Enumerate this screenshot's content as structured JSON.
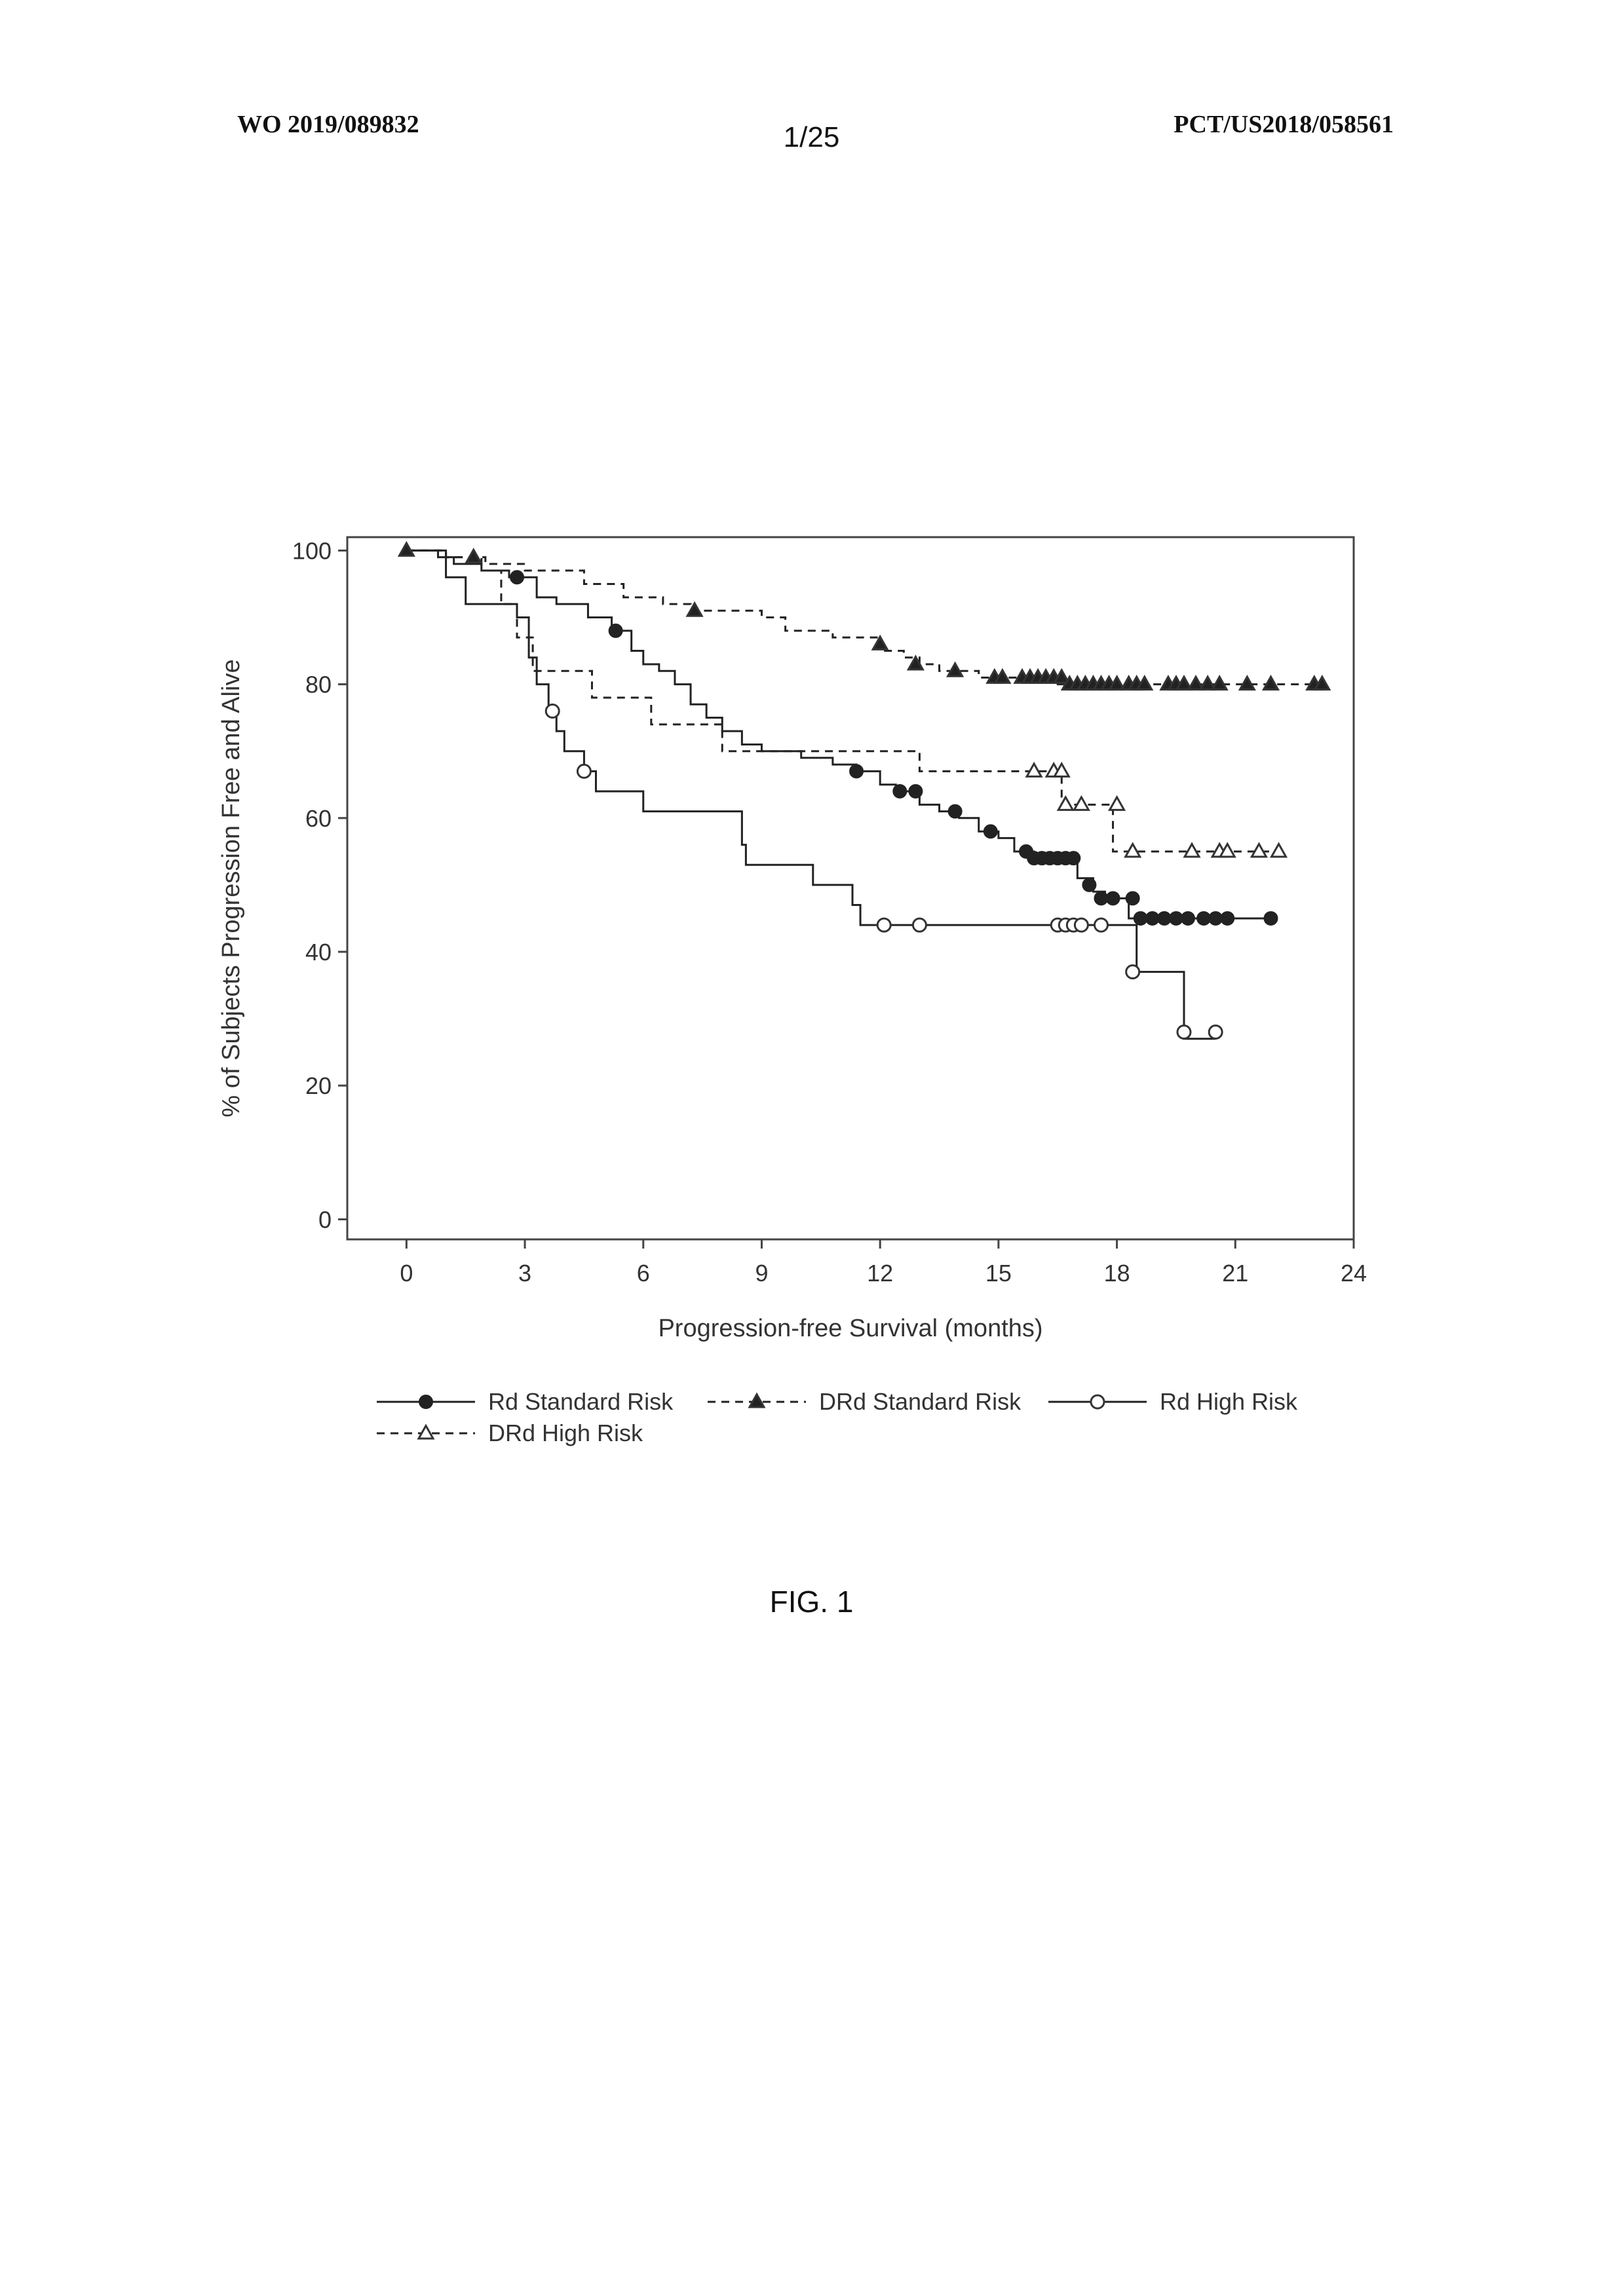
{
  "header": {
    "left": "WO 2019/089832",
    "center": "1/25",
    "right": "PCT/US2018/058561"
  },
  "figure_caption": "FIG. 1",
  "chart_data": {
    "type": "line",
    "step": true,
    "title": "",
    "xlabel": "Progression-free Survival (months)",
    "ylabel": "% of Subjects Progression Free and Alive",
    "xlim": [
      -1.5,
      24
    ],
    "ylim": [
      -3,
      102
    ],
    "xticks": [
      0,
      3,
      6,
      9,
      12,
      15,
      18,
      21,
      24
    ],
    "yticks": [
      0,
      20,
      40,
      60,
      80,
      100
    ],
    "grid": false,
    "legend_position": "bottom",
    "series": [
      {
        "name": "Rd Standard Risk",
        "line": "solid",
        "marker": "filled-circle",
        "color": "#222222",
        "points": [
          [
            0,
            100
          ],
          [
            0.8,
            99
          ],
          [
            1.2,
            98
          ],
          [
            1.9,
            97
          ],
          [
            2.6,
            96
          ],
          [
            3.3,
            93
          ],
          [
            3.8,
            92
          ],
          [
            4.6,
            90
          ],
          [
            5.2,
            88
          ],
          [
            5.7,
            85
          ],
          [
            6.0,
            83
          ],
          [
            6.4,
            82
          ],
          [
            6.8,
            80
          ],
          [
            7.2,
            77
          ],
          [
            7.6,
            75
          ],
          [
            8.0,
            73
          ],
          [
            8.5,
            71
          ],
          [
            9.0,
            70
          ],
          [
            10.0,
            69
          ],
          [
            10.8,
            68
          ],
          [
            11.4,
            67
          ],
          [
            12.0,
            65
          ],
          [
            12.4,
            64
          ],
          [
            13.0,
            62
          ],
          [
            13.5,
            61
          ],
          [
            14.0,
            60
          ],
          [
            14.5,
            58
          ],
          [
            15.0,
            57
          ],
          [
            15.4,
            55
          ],
          [
            15.9,
            54
          ],
          [
            16.3,
            54
          ],
          [
            17.0,
            51
          ],
          [
            17.4,
            49
          ],
          [
            17.7,
            48
          ],
          [
            18.3,
            45
          ],
          [
            18.5,
            45
          ],
          [
            22.0,
            45
          ]
        ],
        "markers": [
          [
            2.8,
            96
          ],
          [
            5.3,
            88
          ],
          [
            11.4,
            67
          ],
          [
            12.5,
            64
          ],
          [
            12.9,
            64
          ],
          [
            13.9,
            61
          ],
          [
            14.8,
            58
          ],
          [
            15.7,
            55
          ],
          [
            15.9,
            54
          ],
          [
            16.1,
            54
          ],
          [
            16.3,
            54
          ],
          [
            16.5,
            54
          ],
          [
            16.7,
            54
          ],
          [
            16.9,
            54
          ],
          [
            17.3,
            50
          ],
          [
            17.6,
            48
          ],
          [
            17.9,
            48
          ],
          [
            18.4,
            48
          ],
          [
            18.6,
            45
          ],
          [
            18.9,
            45
          ],
          [
            19.2,
            45
          ],
          [
            19.5,
            45
          ],
          [
            19.8,
            45
          ],
          [
            20.2,
            45
          ],
          [
            20.5,
            45
          ],
          [
            20.8,
            45
          ],
          [
            21.9,
            45
          ]
        ]
      },
      {
        "name": "DRd Standard Risk",
        "line": "dashed",
        "marker": "filled-triangle",
        "color": "#222222",
        "points": [
          [
            0,
            100
          ],
          [
            1.0,
            99
          ],
          [
            2.0,
            98
          ],
          [
            3.0,
            97
          ],
          [
            4.5,
            95
          ],
          [
            5.5,
            93
          ],
          [
            6.5,
            92
          ],
          [
            7.2,
            91
          ],
          [
            9.0,
            90
          ],
          [
            9.6,
            88
          ],
          [
            10.8,
            87
          ],
          [
            12.0,
            85
          ],
          [
            12.6,
            84
          ],
          [
            13.0,
            83
          ],
          [
            13.5,
            82
          ],
          [
            14.5,
            81
          ],
          [
            15.6,
            81
          ],
          [
            16.5,
            80
          ],
          [
            23.2,
            80
          ]
        ],
        "markers": [
          [
            0,
            100
          ],
          [
            1.7,
            99
          ],
          [
            7.3,
            91
          ],
          [
            12.0,
            86
          ],
          [
            12.9,
            83
          ],
          [
            13.9,
            82
          ],
          [
            14.9,
            81
          ],
          [
            15.1,
            81
          ],
          [
            15.6,
            81
          ],
          [
            15.8,
            81
          ],
          [
            16.0,
            81
          ],
          [
            16.2,
            81
          ],
          [
            16.4,
            81
          ],
          [
            16.6,
            81
          ],
          [
            16.8,
            80
          ],
          [
            17.0,
            80
          ],
          [
            17.2,
            80
          ],
          [
            17.4,
            80
          ],
          [
            17.6,
            80
          ],
          [
            17.8,
            80
          ],
          [
            18.0,
            80
          ],
          [
            18.3,
            80
          ],
          [
            18.5,
            80
          ],
          [
            18.7,
            80
          ],
          [
            19.3,
            80
          ],
          [
            19.5,
            80
          ],
          [
            19.7,
            80
          ],
          [
            20.0,
            80
          ],
          [
            20.3,
            80
          ],
          [
            20.6,
            80
          ],
          [
            21.3,
            80
          ],
          [
            21.9,
            80
          ],
          [
            23.0,
            80
          ],
          [
            23.2,
            80
          ]
        ]
      },
      {
        "name": "Rd High Risk",
        "line": "solid",
        "marker": "open-circle",
        "color": "#222222",
        "points": [
          [
            0,
            100
          ],
          [
            1.0,
            96
          ],
          [
            1.5,
            92
          ],
          [
            2.3,
            92
          ],
          [
            2.8,
            90
          ],
          [
            3.1,
            84
          ],
          [
            3.3,
            80
          ],
          [
            3.6,
            76
          ],
          [
            3.8,
            73
          ],
          [
            4.0,
            70
          ],
          [
            4.5,
            67
          ],
          [
            4.8,
            64
          ],
          [
            5.8,
            64
          ],
          [
            6.0,
            61
          ],
          [
            8.3,
            61
          ],
          [
            8.5,
            56
          ],
          [
            8.6,
            53
          ],
          [
            10.0,
            53
          ],
          [
            10.3,
            50
          ],
          [
            11.0,
            50
          ],
          [
            11.3,
            47
          ],
          [
            11.5,
            44
          ],
          [
            18.4,
            44
          ],
          [
            18.5,
            37
          ],
          [
            19.6,
            37
          ],
          [
            19.7,
            27
          ],
          [
            20.5,
            27
          ]
        ],
        "markers": [
          [
            3.7,
            76
          ],
          [
            4.5,
            67
          ],
          [
            12.1,
            44
          ],
          [
            13.0,
            44
          ],
          [
            16.5,
            44
          ],
          [
            16.7,
            44
          ],
          [
            16.9,
            44
          ],
          [
            17.1,
            44
          ],
          [
            17.6,
            44
          ],
          [
            18.4,
            37
          ],
          [
            19.7,
            28
          ],
          [
            20.5,
            28
          ]
        ]
      },
      {
        "name": "DRd High Risk",
        "line": "dashed",
        "marker": "open-triangle",
        "color": "#222222",
        "points": [
          [
            0,
            100
          ],
          [
            1.0,
            99
          ],
          [
            1.9,
            97
          ],
          [
            2.4,
            92
          ],
          [
            2.8,
            87
          ],
          [
            3.2,
            82
          ],
          [
            4.4,
            82
          ],
          [
            4.7,
            78
          ],
          [
            5.9,
            78
          ],
          [
            6.2,
            74
          ],
          [
            7.6,
            74
          ],
          [
            8.0,
            70
          ],
          [
            13.0,
            70
          ],
          [
            13.0,
            67
          ],
          [
            16.5,
            67
          ],
          [
            16.6,
            62
          ],
          [
            17.8,
            62
          ],
          [
            17.9,
            55
          ],
          [
            22.2,
            55
          ]
        ],
        "markers": [
          [
            15.9,
            67
          ],
          [
            16.4,
            67
          ],
          [
            16.6,
            67
          ],
          [
            16.7,
            62
          ],
          [
            17.1,
            62
          ],
          [
            18.0,
            62
          ],
          [
            18.4,
            55
          ],
          [
            19.9,
            55
          ],
          [
            20.6,
            55
          ],
          [
            20.8,
            55
          ],
          [
            21.6,
            55
          ],
          [
            22.1,
            55
          ]
        ]
      }
    ]
  }
}
